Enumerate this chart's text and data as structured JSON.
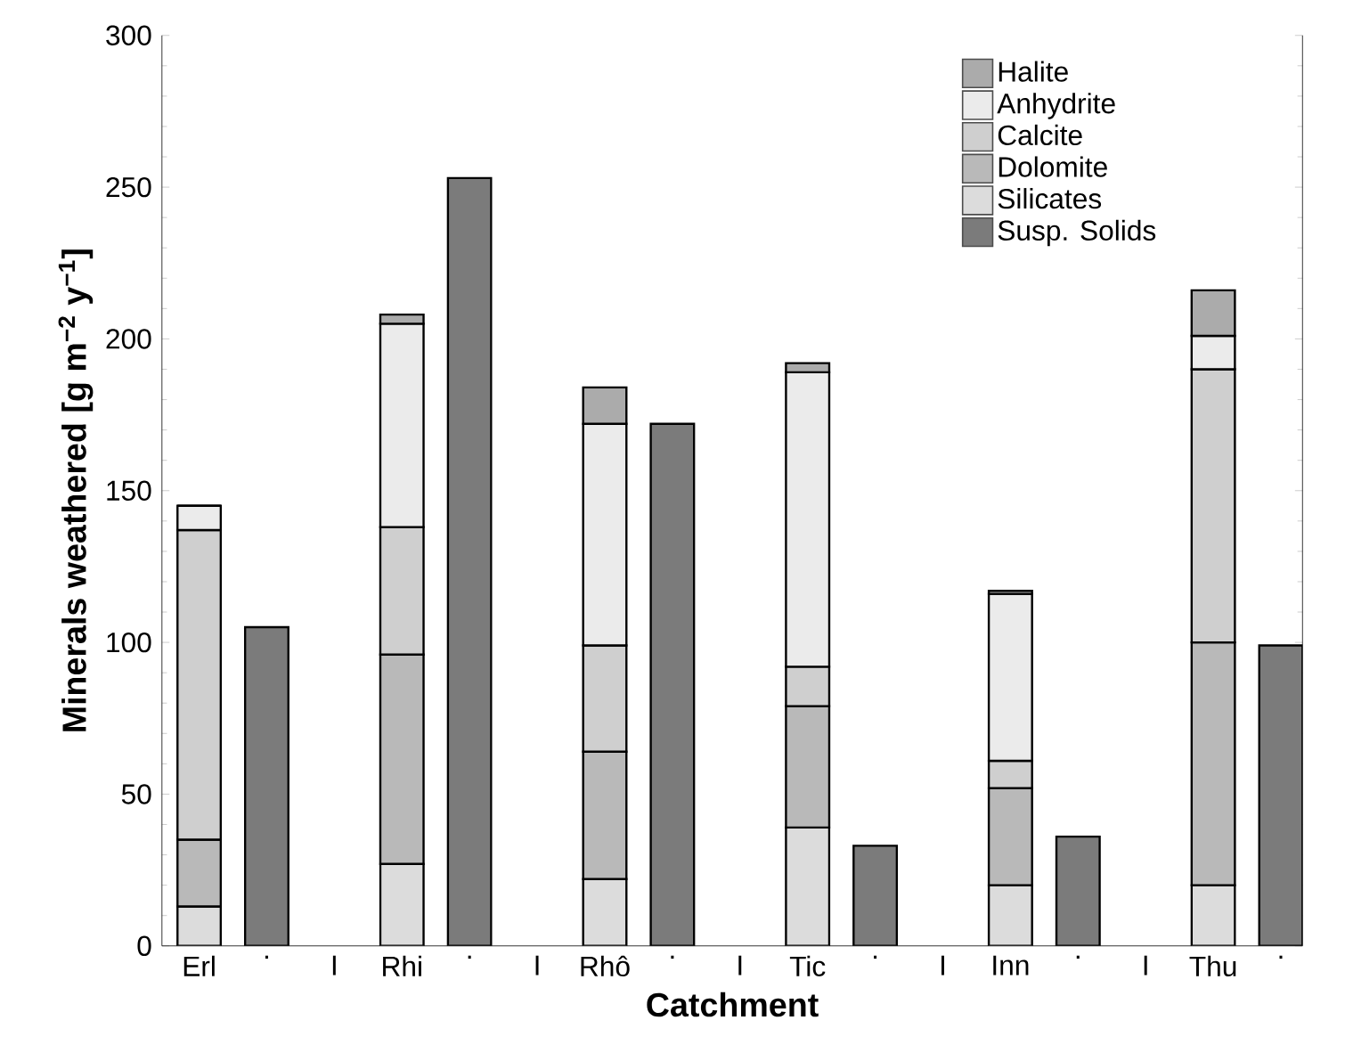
{
  "chart_data": {
    "type": "bar",
    "stacked": true,
    "xlabel": "Catchment",
    "ylabel": "Minerals weathered [g m$^{−2}$ y$^{−1}$]",
    "categories": [
      "Erl",
      ".",
      "I",
      "Rhi",
      ".",
      "I",
      "Rhô",
      ".",
      "I",
      "Tic",
      ".",
      "I",
      "Inn",
      ".",
      "I",
      "Thu",
      "."
    ],
    "series": [
      {
        "name": "Silicates",
        "color": "#dcdcdc",
        "values": [
          13,
          null,
          null,
          27,
          null,
          null,
          22,
          null,
          null,
          39,
          null,
          null,
          20,
          null,
          null,
          20,
          null
        ]
      },
      {
        "name": "Dolomite",
        "color": "#b9b9b9",
        "values": [
          22,
          null,
          null,
          69,
          null,
          null,
          42,
          null,
          null,
          40,
          null,
          null,
          32,
          null,
          null,
          80,
          null
        ]
      },
      {
        "name": "Calcite",
        "color": "#cfcfcf",
        "values": [
          102,
          null,
          null,
          42,
          null,
          null,
          35,
          null,
          null,
          13,
          null,
          null,
          9,
          null,
          null,
          90,
          null
        ]
      },
      {
        "name": "Anhydrite",
        "color": "#ebebeb",
        "values": [
          8,
          null,
          null,
          67,
          null,
          null,
          73,
          null,
          null,
          97,
          null,
          null,
          55,
          null,
          null,
          11,
          null
        ]
      },
      {
        "name": "Halite",
        "color": "#ababab",
        "values": [
          0,
          null,
          null,
          3,
          null,
          null,
          12,
          null,
          null,
          3,
          null,
          null,
          1,
          null,
          null,
          15,
          null
        ]
      },
      {
        "name": "Susp. Solids",
        "color": "#7b7b7b",
        "values": [
          null,
          105,
          null,
          null,
          253,
          null,
          null,
          172,
          null,
          null,
          33,
          null,
          null,
          36,
          null,
          null,
          99
        ]
      }
    ],
    "ylim": [
      0,
      300
    ],
    "yticks": [
      0,
      50,
      100,
      150,
      200,
      250,
      300
    ],
    "legend": "top right"
  }
}
